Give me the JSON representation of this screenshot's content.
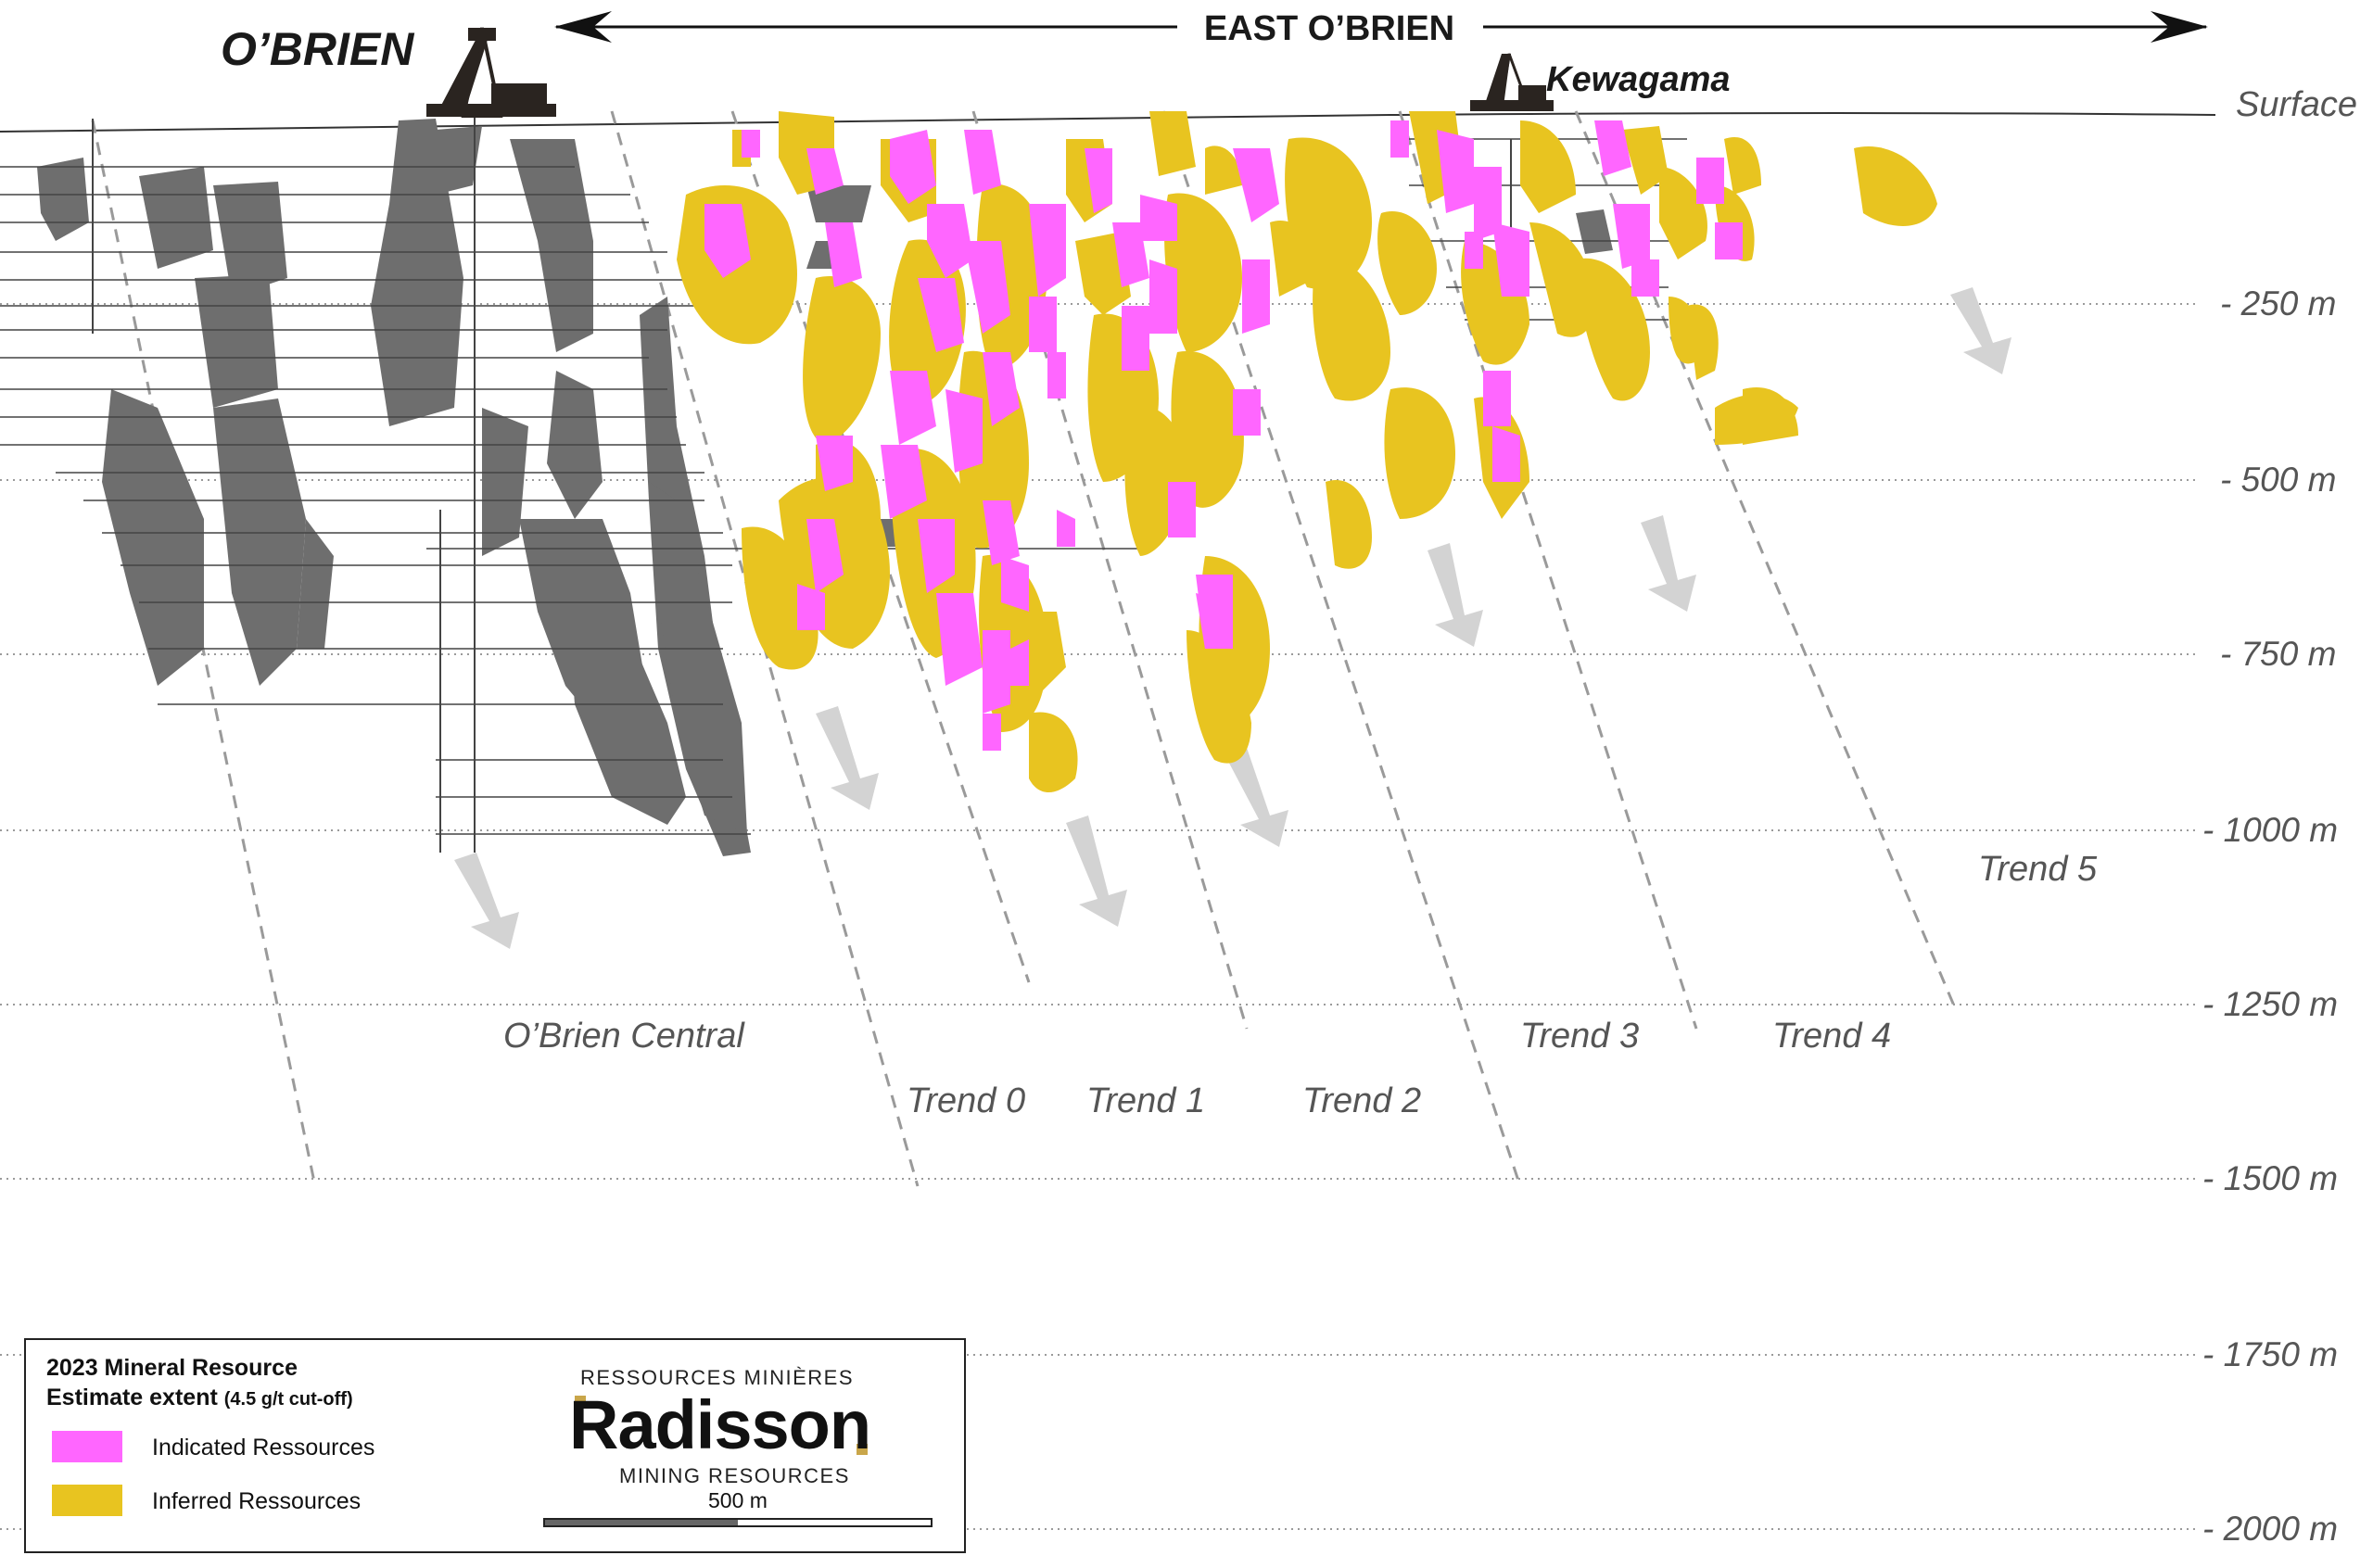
{
  "header": {
    "left_mine": "O’BRIEN",
    "zone_label": "EAST O’BRIEN",
    "right_mine": "Kewagama"
  },
  "surface_label": "Surface",
  "depth_levels": [
    "- 250 m",
    "- 500 m",
    "- 750 m",
    "- 1000 m",
    "- 1250 m",
    "- 1500 m",
    "- 1750 m",
    "- 2000 m"
  ],
  "trends": [
    "O’Brien Central",
    "Trend 0",
    "Trend 1",
    "Trend 2",
    "Trend 3",
    "Trend 4",
    "Trend 5"
  ],
  "colors": {
    "indicated": "#ff66ff",
    "inferred": "#e8c420",
    "workings": "#707070",
    "trend_line": "#9a9a9a",
    "arrow": "#cfcfcf"
  },
  "legend": {
    "title_line1": "2023 Mineral Resource",
    "title_line2": "Estimate extent",
    "cutoff": "(4.5  g/t cut-off)",
    "items": [
      {
        "label": "Indicated Ressources",
        "color": "#ff66ff"
      },
      {
        "label": "Inferred Ressources",
        "color": "#e8c420"
      }
    ]
  },
  "brand": {
    "top": "RESSOURCES MINIÈRES",
    "name": "Radisson",
    "bottom": "MINING RESOURCES"
  },
  "scale_bar_label": "500 m"
}
